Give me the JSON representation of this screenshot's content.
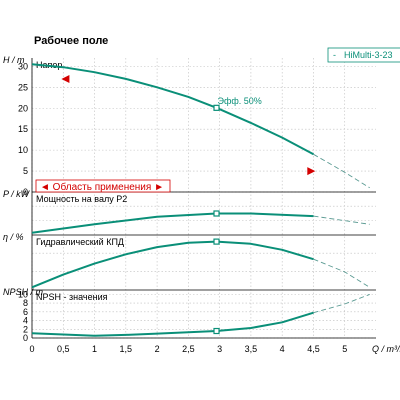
{
  "title": "Рабочее поле",
  "legend": {
    "dash": "-",
    "name": "HiMulti-3-23"
  },
  "colors": {
    "curve": "#0a8f78",
    "dashed": "#5a9a92",
    "grid": "#bfbfbf",
    "range": "#d40000"
  },
  "chart_data": [
    {
      "type": "line",
      "panel": "head",
      "axis_label": "H / m",
      "label": "Напор",
      "annotation": "Эфф. 50%",
      "ylim": [
        0,
        30
      ],
      "yticks": [
        "0",
        "5",
        "10",
        "15",
        "20",
        "25",
        "30"
      ],
      "solid": [
        [
          0,
          30.5
        ],
        [
          0.5,
          29.8
        ],
        [
          1,
          28.6
        ],
        [
          1.5,
          27
        ],
        [
          2,
          25
        ],
        [
          2.5,
          22.7
        ],
        [
          2.95,
          20.1
        ],
        [
          3.5,
          16.5
        ],
        [
          4,
          13
        ],
        [
          4.5,
          9
        ]
      ],
      "dashed": [
        [
          4.5,
          9
        ],
        [
          5,
          4.7
        ],
        [
          5.4,
          1
        ]
      ],
      "operating_point": [
        2.95,
        20.1
      ],
      "range_markers": [
        [
          0.55,
          27
        ],
        [
          4.45,
          5
        ]
      ]
    },
    {
      "type": "line",
      "panel": "power",
      "axis_label": "P / kW",
      "label": "Мощность на валу P2",
      "range_label": "Область применения",
      "solid": [
        [
          0,
          0.1
        ],
        [
          1,
          0.5
        ],
        [
          2,
          0.85
        ],
        [
          2.95,
          1.0
        ],
        [
          3.5,
          1.0
        ],
        [
          4.5,
          0.88
        ]
      ],
      "dashed": [
        [
          4.5,
          0.88
        ],
        [
          5.4,
          0.5
        ]
      ],
      "operating_point": [
        2.95,
        1.0
      ]
    },
    {
      "type": "line",
      "panel": "efficiency",
      "axis_label": "η / %",
      "label": "Гидравлический КПД",
      "solid": [
        [
          0,
          0.5
        ],
        [
          0.5,
          2.8
        ],
        [
          1,
          4.8
        ],
        [
          1.5,
          6.5
        ],
        [
          2,
          7.8
        ],
        [
          2.5,
          8.6
        ],
        [
          2.95,
          8.8
        ],
        [
          3.5,
          8.4
        ],
        [
          4,
          7.3
        ],
        [
          4.5,
          5.6
        ]
      ],
      "dashed": [
        [
          4.5,
          5.6
        ],
        [
          5,
          3.3
        ],
        [
          5.4,
          0.5
        ]
      ],
      "operating_point": [
        2.95,
        8.8
      ]
    },
    {
      "type": "line",
      "panel": "npsh",
      "axis_label": "NPSH / m",
      "label": "NPSH - значения",
      "ylim": [
        0,
        10
      ],
      "yticks": [
        "0",
        "2",
        "4",
        "6",
        "8",
        "10"
      ],
      "solid": [
        [
          0,
          1.1
        ],
        [
          0.5,
          0.8
        ],
        [
          1,
          0.5
        ],
        [
          1.5,
          0.7
        ],
        [
          2,
          1.0
        ],
        [
          2.5,
          1.3
        ],
        [
          2.95,
          1.6
        ],
        [
          3.5,
          2.3
        ],
        [
          4,
          3.6
        ],
        [
          4.5,
          5.8
        ]
      ],
      "dashed": [
        [
          4.5,
          5.8
        ],
        [
          5,
          7.8
        ],
        [
          5.4,
          10
        ]
      ],
      "operating_point": [
        2.95,
        1.6
      ]
    }
  ],
  "x_axis": {
    "label": "Q / m³/h",
    "xlim": [
      0,
      5.5
    ],
    "ticks": [
      "0",
      "0,5",
      "1",
      "1,5",
      "2",
      "2,5",
      "3",
      "3,5",
      "4",
      "4,5",
      "5"
    ]
  }
}
